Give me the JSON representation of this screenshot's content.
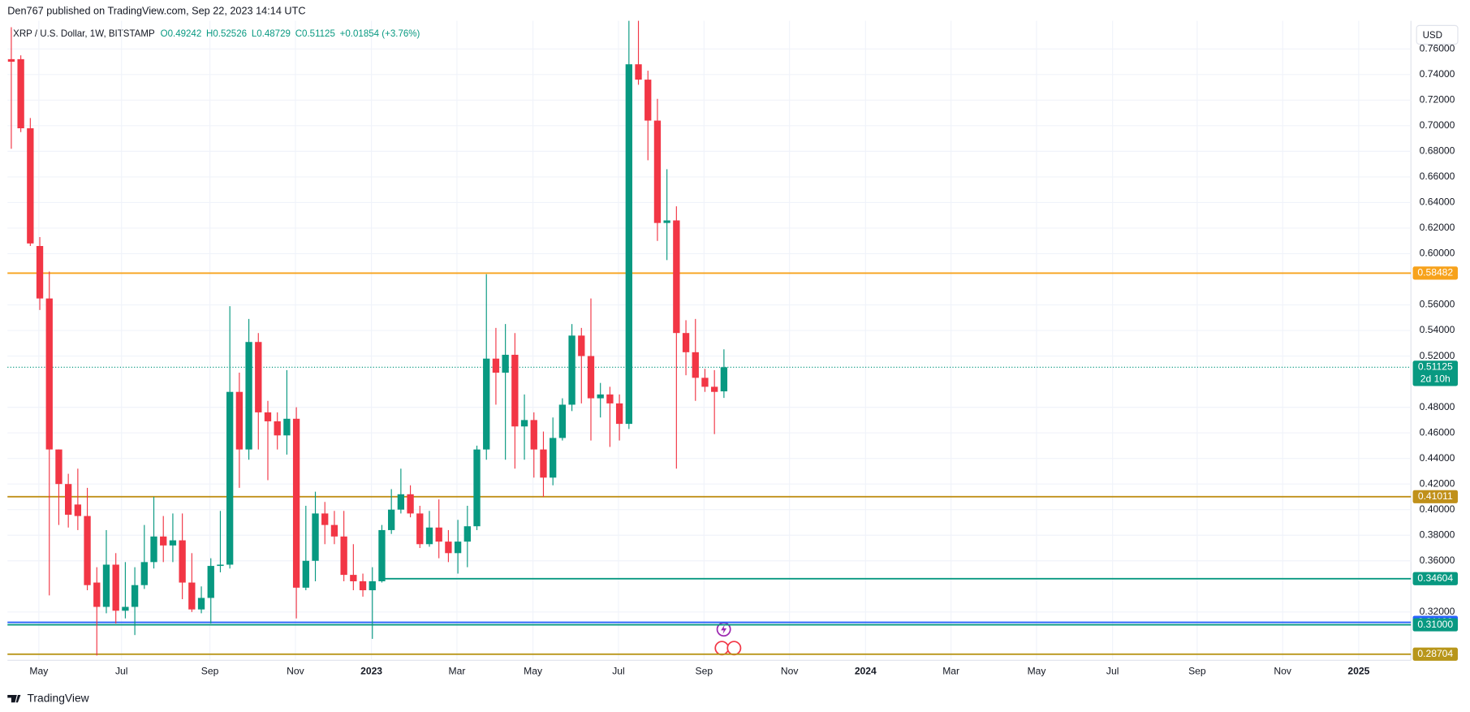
{
  "chart_data": {
    "type": "candlestick",
    "attribution": "Den767 published on TradingView.com, Sep 22, 2023 14:14 UTC",
    "title": "XRP / U.S. Dollar, 1W, BITSTAMP",
    "legend_values": [
      "O0.49242",
      "H0.52526",
      "L0.48729",
      "C0.51125",
      "+0.01854 (+3.76%)"
    ],
    "currency": "USD",
    "brand": "TradingView",
    "up_color": "#089981",
    "down_color": "#f23645",
    "open": [
      0.752,
      0.752,
      0.698,
      0.606,
      0.565,
      0.447,
      0.42,
      0.404,
      0.395,
      0.343,
      0.324,
      0.357,
      0.321,
      0.324,
      0.341,
      0.359,
      0.379,
      0.372,
      0.376,
      0.343,
      0.322,
      0.331,
      0.356,
      0.357,
      0.492,
      0.447,
      0.531,
      0.476,
      0.469,
      0.458,
      0.471,
      0.339,
      0.36,
      0.397,
      0.388,
      0.379,
      0.349,
      0.344,
      0.337,
      0.344,
      0.384,
      0.4,
      0.412,
      0.397,
      0.373,
      0.386,
      0.375,
      0.366,
      0.375,
      0.387,
      0.447,
      0.518,
      0.507,
      0.521,
      0.465,
      0.47,
      0.447,
      0.425,
      0.456,
      0.482,
      0.536,
      0.52,
      0.487,
      0.49,
      0.483,
      0.467,
      0.748,
      0.736,
      0.704,
      0.624,
      0.626,
      0.538,
      0.523,
      0.503,
      0.496,
      0.49242
    ],
    "high": [
      0.777,
      0.755,
      0.706,
      0.613,
      0.586,
      0.447,
      0.428,
      0.432,
      0.417,
      0.355,
      0.384,
      0.366,
      0.359,
      0.355,
      0.388,
      0.41,
      0.395,
      0.397,
      0.397,
      0.366,
      0.34,
      0.362,
      0.399,
      0.559,
      0.507,
      0.549,
      0.538,
      0.485,
      0.476,
      0.509,
      0.48,
      0.403,
      0.414,
      0.406,
      0.399,
      0.399,
      0.373,
      0.35,
      0.355,
      0.388,
      0.416,
      0.432,
      0.419,
      0.403,
      0.399,
      0.408,
      0.384,
      0.392,
      0.403,
      0.45,
      0.584,
      0.542,
      0.545,
      0.538,
      0.49,
      0.476,
      0.461,
      0.472,
      0.487,
      0.545,
      0.542,
      0.565,
      0.499,
      0.496,
      0.49,
      0.782,
      0.782,
      0.743,
      0.721,
      0.666,
      0.637,
      0.548,
      0.549,
      0.51,
      0.509,
      0.52526
    ],
    "low": [
      0.682,
      0.695,
      0.606,
      0.556,
      0.333,
      0.388,
      0.386,
      0.384,
      0.337,
      0.286,
      0.319,
      0.311,
      0.315,
      0.302,
      0.338,
      0.354,
      0.359,
      0.359,
      0.33,
      0.32,
      0.319,
      0.311,
      0.351,
      0.354,
      0.417,
      0.439,
      0.447,
      0.423,
      0.447,
      0.443,
      0.315,
      0.337,
      0.344,
      0.373,
      0.373,
      0.344,
      0.337,
      0.332,
      0.299,
      0.343,
      0.381,
      0.397,
      0.394,
      0.37,
      0.371,
      0.362,
      0.359,
      0.35,
      0.355,
      0.384,
      0.439,
      0.482,
      0.439,
      0.432,
      0.439,
      0.425,
      0.41,
      0.419,
      0.454,
      0.477,
      0.483,
      0.454,
      0.472,
      0.449,
      0.454,
      0.463,
      0.732,
      0.673,
      0.61,
      0.595,
      0.432,
      0.505,
      0.485,
      0.492,
      0.459,
      0.48729
    ],
    "close": [
      0.75,
      0.698,
      0.608,
      0.565,
      0.447,
      0.42,
      0.396,
      0.395,
      0.341,
      0.324,
      0.357,
      0.321,
      0.324,
      0.341,
      0.359,
      0.379,
      0.372,
      0.376,
      0.343,
      0.322,
      0.331,
      0.356,
      0.357,
      0.492,
      0.447,
      0.531,
      0.476,
      0.469,
      0.458,
      0.471,
      0.339,
      0.36,
      0.397,
      0.388,
      0.379,
      0.349,
      0.344,
      0.337,
      0.344,
      0.384,
      0.4,
      0.412,
      0.397,
      0.373,
      0.386,
      0.375,
      0.366,
      0.375,
      0.387,
      0.447,
      0.518,
      0.507,
      0.521,
      0.465,
      0.47,
      0.447,
      0.425,
      0.456,
      0.482,
      0.536,
      0.52,
      0.487,
      0.49,
      0.483,
      0.467,
      0.748,
      0.736,
      0.704,
      0.624,
      0.626,
      0.538,
      0.523,
      0.503,
      0.496,
      0.492,
      0.51125
    ],
    "xlim": [
      -0.4,
      147.3
    ],
    "xticks": [
      {
        "value": 2.9,
        "label": "May"
      },
      {
        "value": 11.6,
        "label": "Jul"
      },
      {
        "value": 20.9,
        "label": "Sep"
      },
      {
        "value": 29.9,
        "label": "Nov"
      },
      {
        "value": 37.9,
        "label": "2023"
      },
      {
        "value": 46.9,
        "label": "Mar"
      },
      {
        "value": 54.9,
        "label": "May"
      },
      {
        "value": 63.9,
        "label": "Jul"
      },
      {
        "value": 72.9,
        "label": "Sep"
      },
      {
        "value": 81.9,
        "label": "Nov"
      },
      {
        "value": 89.9,
        "label": "2024"
      },
      {
        "value": 98.9,
        "label": "Mar"
      },
      {
        "value": 107.9,
        "label": "May"
      },
      {
        "value": 115.9,
        "label": "Jul"
      },
      {
        "value": 124.8,
        "label": "Sep"
      },
      {
        "value": 133.8,
        "label": "Nov"
      },
      {
        "value": 141.8,
        "label": "2025"
      }
    ],
    "ylim": [
      0.283,
      0.782
    ],
    "yticks": [
      {
        "value": 0.76,
        "label": "0.76000"
      },
      {
        "value": 0.74,
        "label": "0.74000"
      },
      {
        "value": 0.72,
        "label": "0.72000"
      },
      {
        "value": 0.7,
        "label": "0.70000"
      },
      {
        "value": 0.68,
        "label": "0.68000"
      },
      {
        "value": 0.66,
        "label": "0.66000"
      },
      {
        "value": 0.64,
        "label": "0.64000"
      },
      {
        "value": 0.62,
        "label": "0.62000"
      },
      {
        "value": 0.6,
        "label": "0.60000"
      },
      {
        "value": 0.56,
        "label": "0.56000"
      },
      {
        "value": 0.54,
        "label": "0.54000"
      },
      {
        "value": 0.52,
        "label": "0.52000"
      },
      {
        "value": 0.48,
        "label": "0.48000"
      },
      {
        "value": 0.46,
        "label": "0.46000"
      },
      {
        "value": 0.44,
        "label": "0.44000"
      },
      {
        "value": 0.42,
        "label": "0.42000"
      },
      {
        "value": 0.4,
        "label": "0.40000"
      },
      {
        "value": 0.38,
        "label": "0.38000"
      },
      {
        "value": 0.36,
        "label": "0.36000"
      },
      {
        "value": 0.32,
        "label": "0.32000"
      }
    ],
    "grid": true,
    "levels": [
      {
        "value": 0.58482,
        "color": "#f7a21b"
      },
      {
        "value": 0.41011,
        "color": "#c0901a"
      },
      {
        "value": 0.34604,
        "color": "#089981",
        "start": 38.8
      },
      {
        "value": 0.31193,
        "color": "#2962ff"
      },
      {
        "value": 0.31,
        "label": "0.31000",
        "color": "#089981"
      },
      {
        "value": 0.28704,
        "color": "#b8961a"
      }
    ],
    "last_price": {
      "value": 0.51125,
      "countdown": "2d 10h",
      "color": "#089981"
    }
  }
}
